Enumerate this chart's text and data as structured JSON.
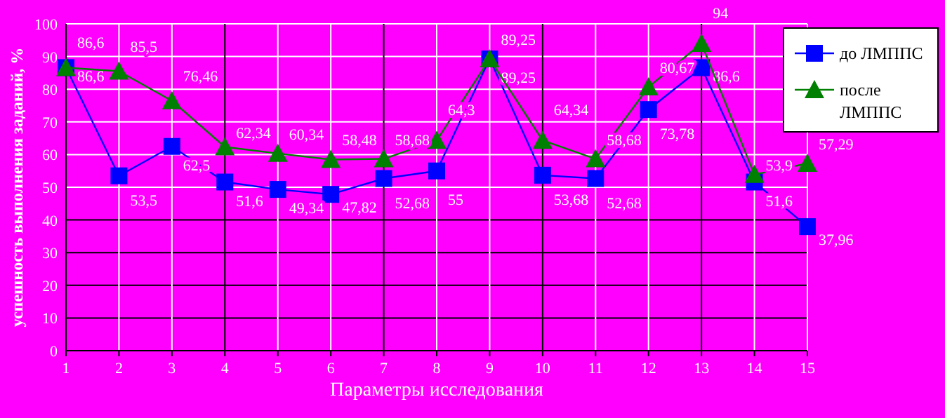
{
  "chart_data": {
    "type": "line",
    "xlabel": "Параметры исследования",
    "ylabel": "успешность выполнения заданий, %",
    "x": [
      1,
      2,
      3,
      4,
      5,
      6,
      7,
      8,
      9,
      10,
      11,
      12,
      13,
      14,
      15
    ],
    "xlim": [
      1,
      15
    ],
    "xticks": [
      1,
      2,
      3,
      4,
      5,
      6,
      7,
      8,
      9,
      10,
      11,
      12,
      13,
      14,
      15
    ],
    "ylim": [
      0,
      100
    ],
    "yticks": [
      0,
      10,
      20,
      30,
      40,
      50,
      60,
      70,
      80,
      90,
      100
    ],
    "grid": true,
    "legend": "right",
    "series": [
      {
        "name": "до ЛМППС",
        "color": "#0000ff",
        "marker": "square",
        "values": [
          86.6,
          53.5,
          62.5,
          51.6,
          49.34,
          47.82,
          52.68,
          55,
          89.25,
          53.68,
          52.68,
          73.78,
          86.6,
          51.6,
          37.96
        ],
        "value_labels": [
          "86,6",
          "53,5",
          "62,5",
          "51,6",
          "49,34",
          "47,82",
          "52,68",
          "55",
          "89,25",
          "53,68",
          "52,68",
          "73,78",
          "86,6",
          "51,6",
          "37,96"
        ]
      },
      {
        "name": "после ЛМППС",
        "color": "#008000",
        "marker": "triangle",
        "values": [
          86.6,
          85.5,
          76.46,
          62.34,
          60.34,
          58.48,
          58.68,
          64.3,
          89.25,
          64.34,
          58.68,
          80.67,
          94,
          53.9,
          57.29
        ],
        "value_labels": [
          "86,6",
          "85,5",
          "76,46",
          "62,34",
          "60,34",
          "58,48",
          "58,68",
          "64,3",
          "89,25",
          "64,34",
          "58,68",
          "80,67",
          "94",
          "53,9",
          "57,29"
        ]
      }
    ]
  }
}
